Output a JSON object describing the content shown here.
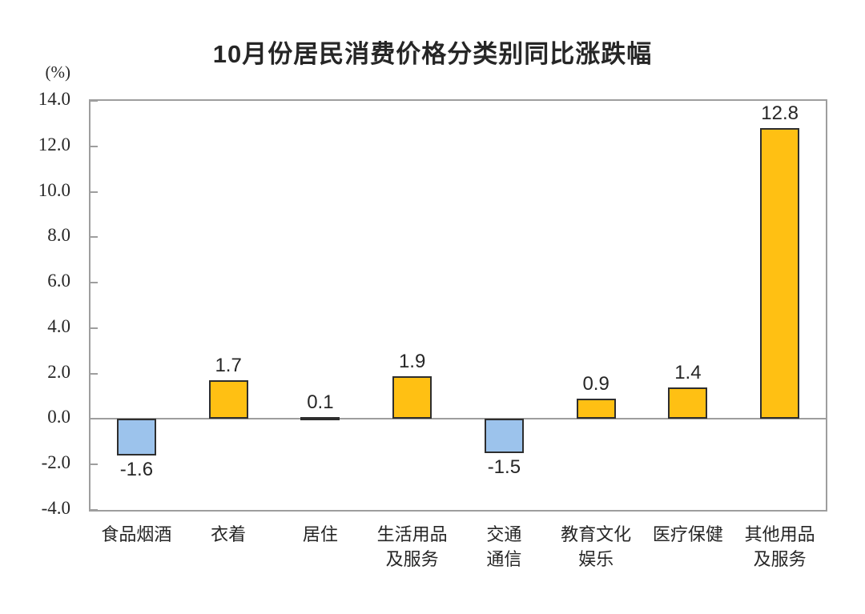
{
  "chart_data": {
    "type": "bar",
    "title": "10月份居民消费价格分类别同比涨跌幅",
    "unit_label": "(%)",
    "categories": [
      "食品烟酒",
      "衣着",
      "居住",
      "生活用品及服务",
      "交通通信",
      "教育文化娱乐",
      "医疗保健",
      "其他用品及服务"
    ],
    "category_label_lines": [
      [
        "食品烟酒"
      ],
      [
        "衣着"
      ],
      [
        "居住"
      ],
      [
        "生活用品",
        "及服务"
      ],
      [
        "交通",
        "通信"
      ],
      [
        "教育文化",
        "娱乐"
      ],
      [
        "医疗保健"
      ],
      [
        "其他用品",
        "及服务"
      ]
    ],
    "values": [
      -1.6,
      1.7,
      0.1,
      1.9,
      -1.5,
      0.9,
      1.4,
      12.8
    ],
    "value_labels": [
      "-1.6",
      "1.7",
      "0.1",
      "1.9",
      "-1.5",
      "0.9",
      "1.4",
      "12.8"
    ],
    "xlabel": "",
    "ylabel": "(%)",
    "ylim": [
      -4.0,
      14.0
    ],
    "ytick_step": 2.0,
    "ytick_labels": [
      "14.0",
      "12.0",
      "10.0",
      "8.0",
      "6.0",
      "4.0",
      "2.0",
      "0.0",
      "-2.0",
      "-4.0"
    ],
    "grid": "off",
    "legend": "none",
    "colors": {
      "bar_positive": "#FFC013",
      "bar_negative": "#9CC3EC",
      "bar_border": "#2E2E2E",
      "axis_frame": "#9E9E9E",
      "zero_line": "#9E9E9E",
      "text": "#262626"
    }
  }
}
